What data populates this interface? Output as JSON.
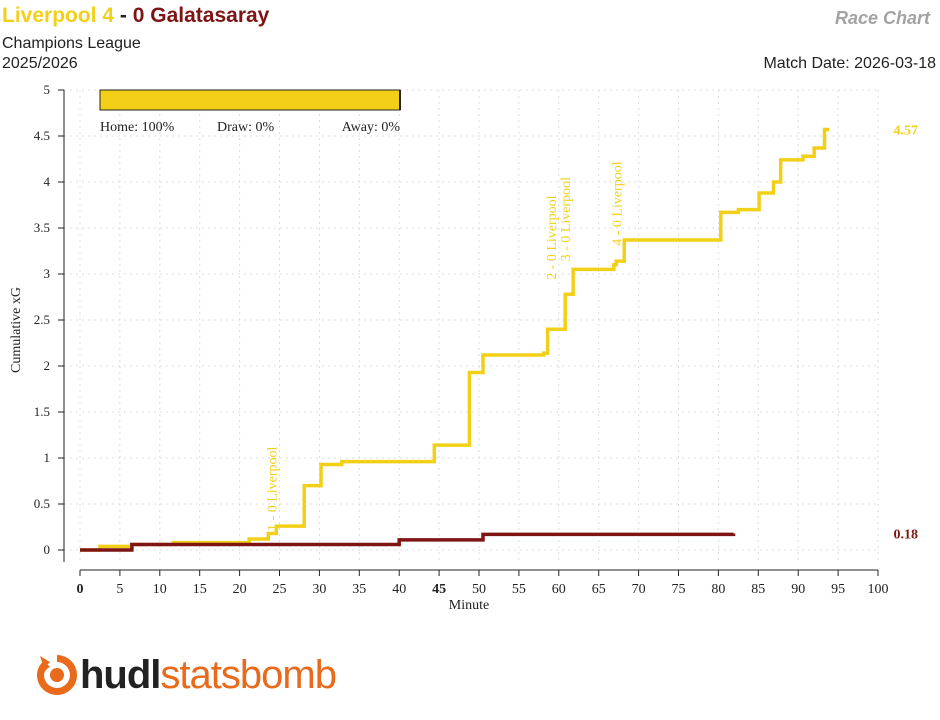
{
  "header": {
    "home_team": "Liverpool",
    "home_score": "4",
    "separator": "-",
    "away_score": "0",
    "away_team": "Galatasaray",
    "competition": "Champions League",
    "season": "2025/2026",
    "chart_title": "Race Chart",
    "match_date": "Match Date: 2026-03-18"
  },
  "logo": {
    "brand_part1": "hudl",
    "brand_part2": "statsbomb",
    "icon": "statsbomb-logo-icon"
  },
  "colors": {
    "home": "#f2d018",
    "away": "#7e1414",
    "grid": "#dddddd",
    "axis": "#222222",
    "logo_orange": "#e86a1a"
  },
  "chart_data": {
    "type": "line",
    "xlabel": "Minute",
    "ylabel": "Cumulative xG",
    "xlim": [
      0,
      100
    ],
    "ylim": [
      0,
      5
    ],
    "x_ticks": [
      0,
      5,
      10,
      15,
      20,
      25,
      30,
      35,
      40,
      45,
      50,
      55,
      60,
      65,
      70,
      75,
      80,
      85,
      90,
      95,
      100
    ],
    "y_ticks": [
      "0",
      "0.5",
      "1",
      "1.5",
      "2",
      "2.5",
      "3",
      "3.5",
      "4",
      "4.5",
      "5"
    ],
    "x_bold_ticks": [
      0,
      45
    ],
    "grid": true,
    "series": [
      {
        "name": "Liverpool",
        "step": true,
        "x": [
          0,
          2.5,
          6.5,
          11.7,
          21.2,
          23.6,
          24.6,
          28.1,
          30.2,
          32.8,
          44.4,
          48.8,
          50.5,
          58.1,
          58.6,
          60.8,
          61.8,
          66.9,
          67.2,
          68.2,
          80.3,
          82.5,
          85.1,
          86.9,
          87.8,
          90.6,
          92.0,
          93.3,
          93.9
        ],
        "y": [
          0,
          0.04,
          0.06,
          0.08,
          0.12,
          0.18,
          0.26,
          0.7,
          0.93,
          0.96,
          1.14,
          1.93,
          2.12,
          2.14,
          2.4,
          2.78,
          3.05,
          3.1,
          3.14,
          3.37,
          3.67,
          3.7,
          3.88,
          4.0,
          4.24,
          4.28,
          4.37,
          4.57,
          4.57
        ],
        "end_label": "4.57"
      },
      {
        "name": "Galatasaray",
        "step": true,
        "x": [
          0,
          6.5,
          40.0,
          50.5,
          81.9
        ],
        "y": [
          0,
          0.06,
          0.11,
          0.17,
          0.18
        ],
        "end_label": "0.18"
      }
    ],
    "goal_annotations": [
      {
        "minute": 24,
        "label": "1 - 0 Liverpool",
        "y": 0.12
      },
      {
        "minute": 59,
        "label": "2 - 0 Liverpool",
        "y": 2.85
      },
      {
        "minute": 60.8,
        "label": "3 - 0 Liverpool",
        "y": 3.05
      },
      {
        "minute": 67.2,
        "label": "4 - 0 Liverpool",
        "y": 3.22
      }
    ],
    "win_probability": {
      "home_label": "Home: 100%",
      "draw_label": "Draw: 0%",
      "away_label": "Away: 0%",
      "home": 1.0,
      "draw": 0.0,
      "away": 0.0
    }
  }
}
